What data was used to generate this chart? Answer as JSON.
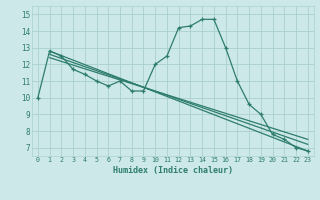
{
  "title": "",
  "xlabel": "Humidex (Indice chaleur)",
  "xlim": [
    -0.5,
    23.5
  ],
  "ylim": [
    6.5,
    15.5
  ],
  "yticks": [
    7,
    8,
    9,
    10,
    11,
    12,
    13,
    14,
    15
  ],
  "xticks": [
    0,
    1,
    2,
    3,
    4,
    5,
    6,
    7,
    8,
    9,
    10,
    11,
    12,
    13,
    14,
    15,
    16,
    17,
    18,
    19,
    20,
    21,
    22,
    23
  ],
  "background_color": "#cce8e8",
  "grid_color": "#aad0d0",
  "line_color": "#2e7d6e",
  "series1_x": [
    0,
    1,
    2,
    3,
    4,
    5,
    6,
    7,
    8,
    9,
    10,
    11,
    12,
    13,
    14,
    15,
    16,
    17,
    18,
    19,
    20,
    21,
    22,
    23
  ],
  "series1_y": [
    10.0,
    12.8,
    12.5,
    11.7,
    11.4,
    11.0,
    10.7,
    11.0,
    10.4,
    10.4,
    12.0,
    12.5,
    14.2,
    14.3,
    14.7,
    14.7,
    13.0,
    11.0,
    9.6,
    9.0,
    7.8,
    7.5,
    7.0,
    6.8
  ],
  "line2_x": [
    1,
    23
  ],
  "line2_y": [
    12.8,
    6.8
  ],
  "line3_x": [
    1,
    23
  ],
  "line3_y": [
    12.6,
    7.2
  ],
  "line4_x": [
    1,
    23
  ],
  "line4_y": [
    12.4,
    7.5
  ]
}
